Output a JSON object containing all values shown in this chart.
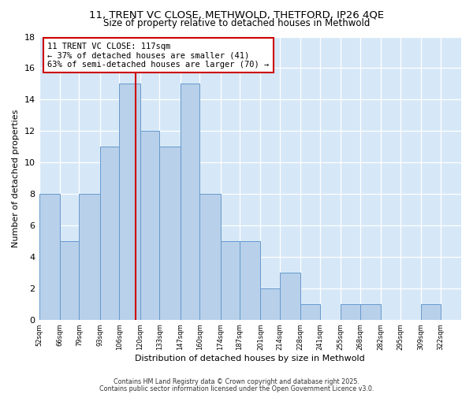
{
  "title1": "11, TRENT VC CLOSE, METHWOLD, THETFORD, IP26 4QE",
  "title2": "Size of property relative to detached houses in Methwold",
  "xlabel": "Distribution of detached houses by size in Methwold",
  "ylabel": "Number of detached properties",
  "bar_labels": [
    "52sqm",
    "66sqm",
    "79sqm",
    "93sqm",
    "106sqm",
    "120sqm",
    "133sqm",
    "147sqm",
    "160sqm",
    "174sqm",
    "187sqm",
    "201sqm",
    "214sqm",
    "228sqm",
    "241sqm",
    "255sqm",
    "268sqm",
    "282sqm",
    "295sqm",
    "309sqm",
    "322sqm"
  ],
  "bar_heights": [
    8,
    5,
    8,
    11,
    15,
    12,
    11,
    15,
    8,
    5,
    5,
    2,
    3,
    1,
    0,
    1,
    1,
    0,
    0,
    1,
    0
  ],
  "bin_edges": [
    52,
    66,
    79,
    93,
    106,
    120,
    133,
    147,
    160,
    174,
    187,
    201,
    214,
    228,
    241,
    255,
    268,
    282,
    295,
    309,
    322,
    336
  ],
  "bar_color": "#b8d0ea",
  "bar_edge_color": "#6699cc",
  "vline_x": 117,
  "vline_color": "#cc0000",
  "ylim": [
    0,
    18
  ],
  "yticks": [
    0,
    2,
    4,
    6,
    8,
    10,
    12,
    14,
    16,
    18
  ],
  "annotation_text": "11 TRENT VC CLOSE: 117sqm\n← 37% of detached houses are smaller (41)\n63% of semi-detached houses are larger (70) →",
  "bg_color": "#d6e8f7",
  "footer1": "Contains HM Land Registry data © Crown copyright and database right 2025.",
  "footer2": "Contains public sector information licensed under the Open Government Licence v3.0.",
  "title1_fontsize": 9.5,
  "title2_fontsize": 8.5,
  "ylabel_fontsize": 8,
  "xlabel_fontsize": 8,
  "ytick_fontsize": 8,
  "xtick_fontsize": 6.0,
  "annot_fontsize": 7.5,
  "footer_fontsize": 5.8
}
